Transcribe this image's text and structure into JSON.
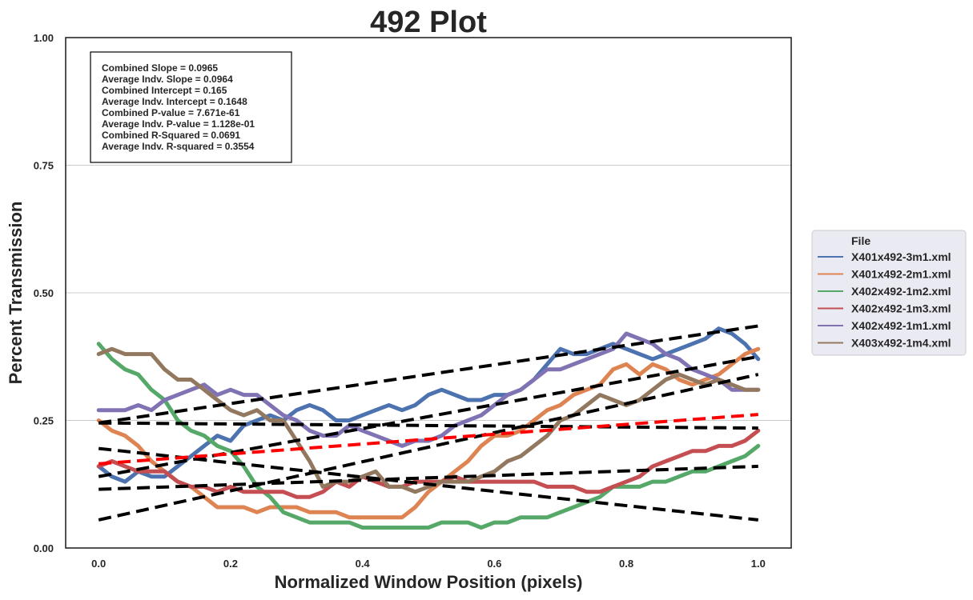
{
  "chart_data": {
    "type": "line",
    "title": "492 Plot",
    "xlabel": "Normalized Window Position (pixels)",
    "ylabel": "Percent Transmission",
    "xlim": [
      -0.05,
      1.05
    ],
    "ylim": [
      0.0,
      1.0
    ],
    "xticks": [
      0.0,
      0.2,
      0.4,
      0.6,
      0.8,
      1.0
    ],
    "xtick_labels": [
      "0.0",
      "0.2",
      "0.4",
      "0.6",
      "0.8",
      "1.0"
    ],
    "yticks": [
      0.0,
      0.25,
      0.5,
      0.75,
      1.0
    ],
    "ytick_labels": [
      "0.00",
      "0.25",
      "0.50",
      "0.75",
      "1.00"
    ],
    "grid": "horizontal",
    "legend": {
      "title": "File",
      "placement": "right-outside"
    },
    "stats": [
      "Combined Slope = 0.0965",
      "Average Indv. Slope = 0.0964",
      "Combined Intercept = 0.165",
      "Average Indv. Intercept = 0.1648",
      "Combined P-value = 7.671e-61",
      "Average Indv. P-value = 1.128e-01",
      "Combined R-Squared = 0.0691",
      "Average Indv. R-squared = 0.3554"
    ],
    "series": [
      {
        "name": "X401x492-3m1.xml",
        "color": "#4c72b0",
        "x": [
          0.0,
          0.02,
          0.04,
          0.06,
          0.08,
          0.1,
          0.12,
          0.14,
          0.16,
          0.18,
          0.2,
          0.22,
          0.24,
          0.26,
          0.28,
          0.3,
          0.32,
          0.34,
          0.36,
          0.38,
          0.4,
          0.42,
          0.44,
          0.46,
          0.48,
          0.5,
          0.52,
          0.54,
          0.56,
          0.58,
          0.6,
          0.62,
          0.64,
          0.66,
          0.68,
          0.7,
          0.72,
          0.74,
          0.76,
          0.78,
          0.8,
          0.82,
          0.84,
          0.86,
          0.88,
          0.9,
          0.92,
          0.94,
          0.96,
          0.98,
          1.0
        ],
        "y": [
          0.16,
          0.14,
          0.13,
          0.15,
          0.14,
          0.14,
          0.16,
          0.18,
          0.2,
          0.22,
          0.21,
          0.24,
          0.25,
          0.26,
          0.25,
          0.27,
          0.28,
          0.27,
          0.25,
          0.25,
          0.26,
          0.27,
          0.28,
          0.27,
          0.28,
          0.3,
          0.31,
          0.3,
          0.29,
          0.29,
          0.3,
          0.3,
          0.31,
          0.33,
          0.36,
          0.39,
          0.38,
          0.38,
          0.39,
          0.4,
          0.39,
          0.38,
          0.37,
          0.38,
          0.39,
          0.4,
          0.41,
          0.43,
          0.42,
          0.4,
          0.37
        ]
      },
      {
        "name": "X401x492-2m1.xml",
        "color": "#dd8452",
        "x": [
          0.0,
          0.02,
          0.04,
          0.06,
          0.08,
          0.1,
          0.12,
          0.14,
          0.16,
          0.18,
          0.2,
          0.22,
          0.24,
          0.26,
          0.28,
          0.3,
          0.32,
          0.34,
          0.36,
          0.38,
          0.4,
          0.42,
          0.44,
          0.46,
          0.48,
          0.5,
          0.52,
          0.54,
          0.56,
          0.58,
          0.6,
          0.62,
          0.64,
          0.66,
          0.68,
          0.7,
          0.72,
          0.74,
          0.76,
          0.78,
          0.8,
          0.82,
          0.84,
          0.86,
          0.88,
          0.9,
          0.92,
          0.94,
          0.96,
          0.98,
          1.0
        ],
        "y": [
          0.25,
          0.23,
          0.22,
          0.2,
          0.17,
          0.15,
          0.13,
          0.12,
          0.1,
          0.08,
          0.08,
          0.08,
          0.07,
          0.08,
          0.08,
          0.08,
          0.07,
          0.07,
          0.07,
          0.06,
          0.06,
          0.06,
          0.06,
          0.06,
          0.08,
          0.11,
          0.13,
          0.15,
          0.17,
          0.2,
          0.22,
          0.22,
          0.23,
          0.25,
          0.27,
          0.28,
          0.3,
          0.31,
          0.32,
          0.35,
          0.36,
          0.34,
          0.36,
          0.35,
          0.33,
          0.32,
          0.33,
          0.34,
          0.36,
          0.38,
          0.39
        ]
      },
      {
        "name": "X402x492-1m2.xml",
        "color": "#55a868",
        "x": [
          0.0,
          0.02,
          0.04,
          0.06,
          0.08,
          0.1,
          0.12,
          0.14,
          0.16,
          0.18,
          0.2,
          0.22,
          0.24,
          0.26,
          0.28,
          0.3,
          0.32,
          0.34,
          0.36,
          0.38,
          0.4,
          0.42,
          0.44,
          0.46,
          0.48,
          0.5,
          0.52,
          0.54,
          0.56,
          0.58,
          0.6,
          0.62,
          0.64,
          0.66,
          0.68,
          0.7,
          0.72,
          0.74,
          0.76,
          0.78,
          0.8,
          0.82,
          0.84,
          0.86,
          0.88,
          0.9,
          0.92,
          0.94,
          0.96,
          0.98,
          1.0
        ],
        "y": [
          0.4,
          0.37,
          0.35,
          0.34,
          0.31,
          0.29,
          0.25,
          0.23,
          0.22,
          0.2,
          0.19,
          0.16,
          0.12,
          0.1,
          0.07,
          0.06,
          0.05,
          0.05,
          0.05,
          0.05,
          0.04,
          0.04,
          0.04,
          0.04,
          0.04,
          0.04,
          0.05,
          0.05,
          0.05,
          0.04,
          0.05,
          0.05,
          0.06,
          0.06,
          0.06,
          0.07,
          0.08,
          0.09,
          0.1,
          0.12,
          0.12,
          0.12,
          0.13,
          0.13,
          0.14,
          0.15,
          0.15,
          0.16,
          0.17,
          0.18,
          0.2
        ]
      },
      {
        "name": "X402x492-1m3.xml",
        "color": "#c44e52",
        "x": [
          0.0,
          0.02,
          0.04,
          0.06,
          0.08,
          0.1,
          0.12,
          0.14,
          0.16,
          0.18,
          0.2,
          0.22,
          0.24,
          0.26,
          0.28,
          0.3,
          0.32,
          0.34,
          0.36,
          0.38,
          0.4,
          0.42,
          0.44,
          0.46,
          0.48,
          0.5,
          0.52,
          0.54,
          0.56,
          0.58,
          0.6,
          0.62,
          0.64,
          0.66,
          0.68,
          0.7,
          0.72,
          0.74,
          0.76,
          0.78,
          0.8,
          0.82,
          0.84,
          0.86,
          0.88,
          0.9,
          0.92,
          0.94,
          0.96,
          0.98,
          1.0
        ],
        "y": [
          0.16,
          0.17,
          0.16,
          0.15,
          0.15,
          0.15,
          0.13,
          0.12,
          0.12,
          0.11,
          0.12,
          0.11,
          0.11,
          0.11,
          0.11,
          0.1,
          0.1,
          0.11,
          0.13,
          0.12,
          0.14,
          0.13,
          0.12,
          0.12,
          0.13,
          0.13,
          0.13,
          0.14,
          0.13,
          0.13,
          0.13,
          0.13,
          0.13,
          0.13,
          0.12,
          0.12,
          0.12,
          0.11,
          0.11,
          0.12,
          0.13,
          0.14,
          0.16,
          0.17,
          0.18,
          0.19,
          0.19,
          0.2,
          0.2,
          0.21,
          0.23
        ]
      },
      {
        "name": "X402x492-1m1.xml",
        "color": "#8172b3",
        "x": [
          0.0,
          0.02,
          0.04,
          0.06,
          0.08,
          0.1,
          0.12,
          0.14,
          0.16,
          0.18,
          0.2,
          0.22,
          0.24,
          0.26,
          0.28,
          0.3,
          0.32,
          0.34,
          0.36,
          0.38,
          0.4,
          0.42,
          0.44,
          0.46,
          0.48,
          0.5,
          0.52,
          0.54,
          0.56,
          0.58,
          0.6,
          0.62,
          0.64,
          0.66,
          0.68,
          0.7,
          0.72,
          0.74,
          0.76,
          0.78,
          0.8,
          0.82,
          0.84,
          0.86,
          0.88,
          0.9,
          0.92,
          0.94,
          0.96,
          0.98,
          1.0
        ],
        "y": [
          0.27,
          0.27,
          0.27,
          0.28,
          0.27,
          0.29,
          0.3,
          0.31,
          0.32,
          0.3,
          0.31,
          0.3,
          0.3,
          0.28,
          0.26,
          0.25,
          0.23,
          0.22,
          0.22,
          0.24,
          0.23,
          0.22,
          0.21,
          0.2,
          0.21,
          0.21,
          0.22,
          0.24,
          0.25,
          0.26,
          0.28,
          0.3,
          0.31,
          0.33,
          0.35,
          0.35,
          0.36,
          0.37,
          0.38,
          0.39,
          0.42,
          0.41,
          0.4,
          0.38,
          0.37,
          0.35,
          0.34,
          0.33,
          0.31,
          0.31,
          0.31
        ]
      },
      {
        "name": "X403x492-1m4.xml",
        "color": "#937860",
        "x": [
          0.0,
          0.02,
          0.04,
          0.06,
          0.08,
          0.1,
          0.12,
          0.14,
          0.16,
          0.18,
          0.2,
          0.22,
          0.24,
          0.26,
          0.28,
          0.3,
          0.32,
          0.34,
          0.36,
          0.38,
          0.4,
          0.42,
          0.44,
          0.46,
          0.48,
          0.5,
          0.52,
          0.54,
          0.56,
          0.58,
          0.6,
          0.62,
          0.64,
          0.66,
          0.68,
          0.7,
          0.72,
          0.74,
          0.76,
          0.78,
          0.8,
          0.82,
          0.84,
          0.86,
          0.88,
          0.9,
          0.92,
          0.94,
          0.96,
          0.98,
          1.0
        ],
        "y": [
          0.38,
          0.39,
          0.38,
          0.38,
          0.38,
          0.35,
          0.33,
          0.33,
          0.31,
          0.29,
          0.27,
          0.26,
          0.27,
          0.25,
          0.25,
          0.21,
          0.17,
          0.12,
          0.13,
          0.13,
          0.14,
          0.15,
          0.12,
          0.12,
          0.11,
          0.12,
          0.13,
          0.13,
          0.13,
          0.14,
          0.15,
          0.17,
          0.18,
          0.2,
          0.22,
          0.25,
          0.26,
          0.28,
          0.3,
          0.29,
          0.28,
          0.29,
          0.31,
          0.33,
          0.34,
          0.33,
          0.32,
          0.33,
          0.32,
          0.31,
          0.31
        ]
      }
    ],
    "fit_lines": [
      {
        "color": "#000000",
        "x": [
          0.0,
          1.0
        ],
        "y": [
          0.245,
          0.435
        ]
      },
      {
        "color": "#000000",
        "x": [
          0.0,
          1.0
        ],
        "y": [
          0.055,
          0.34
        ]
      },
      {
        "color": "#000000",
        "x": [
          0.0,
          1.0
        ],
        "y": [
          0.195,
          0.055
        ]
      },
      {
        "color": "#000000",
        "x": [
          0.0,
          1.0
        ],
        "y": [
          0.115,
          0.16
        ]
      },
      {
        "color": "#000000",
        "x": [
          0.0,
          1.0
        ],
        "y": [
          0.14,
          0.375
        ]
      },
      {
        "color": "#000000",
        "x": [
          0.0,
          1.0
        ],
        "y": [
          0.245,
          0.235
        ]
      },
      {
        "color": "#ff0000",
        "x": [
          0.0,
          1.0
        ],
        "y": [
          0.165,
          0.2615
        ]
      }
    ]
  }
}
